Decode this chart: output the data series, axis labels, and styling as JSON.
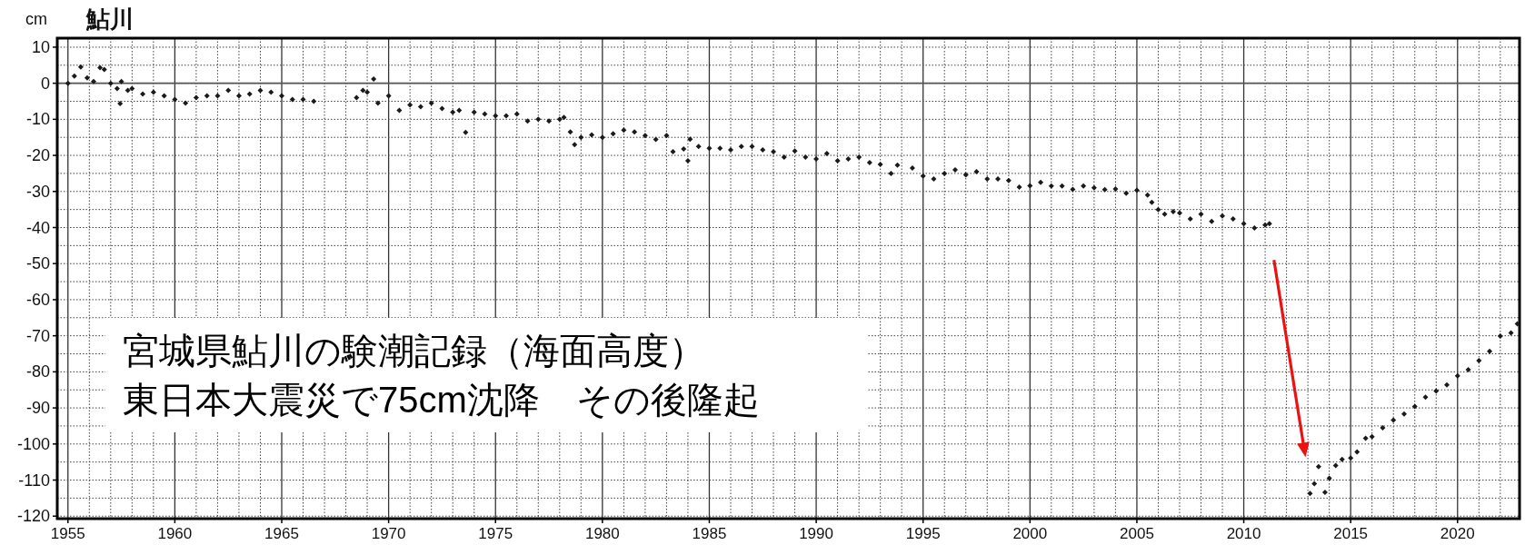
{
  "chart_data": {
    "type": "scatter",
    "title": "鮎川",
    "ylabel": "cm",
    "x": [
      1955.0,
      1955.3,
      1955.6,
      1955.9,
      1956.2,
      1956.5,
      1956.7,
      1957.0,
      1957.3,
      1957.44,
      1957.5,
      1957.8,
      1958.0,
      1958.5,
      1959.0,
      1959.5,
      1960.0,
      1960.5,
      1961.0,
      1961.5,
      1962.0,
      1962.5,
      1963.0,
      1963.5,
      1964.0,
      1964.5,
      1965.0,
      1965.5,
      1966.0,
      1966.5,
      1968.5,
      1968.8,
      1969.0,
      1969.3,
      1969.5,
      1970.0,
      1970.5,
      1971.0,
      1971.5,
      1972.0,
      1972.5,
      1973.0,
      1973.3,
      1973.6,
      1974.0,
      1974.5,
      1975.0,
      1975.5,
      1976.0,
      1976.5,
      1977.0,
      1977.5,
      1978.0,
      1978.2,
      1978.5,
      1978.7,
      1979.0,
      1979.5,
      1980.0,
      1980.5,
      1981.0,
      1981.5,
      1982.0,
      1982.5,
      1983.0,
      1983.3,
      1983.8,
      1984.0,
      1984.1,
      1984.5,
      1985.0,
      1985.5,
      1986.0,
      1986.5,
      1987.0,
      1987.5,
      1988.0,
      1988.5,
      1989.0,
      1989.5,
      1990.0,
      1990.5,
      1991.0,
      1991.5,
      1992.0,
      1992.5,
      1993.0,
      1993.5,
      1993.8,
      1994.5,
      1995.0,
      1995.5,
      1996.0,
      1996.5,
      1997.0,
      1997.5,
      1998.0,
      1998.5,
      1999.0,
      1999.5,
      2000.0,
      2000.5,
      2001.0,
      2001.5,
      2002.0,
      2002.5,
      2003.0,
      2003.5,
      2004.0,
      2004.5,
      2005.0,
      2005.5,
      2005.7,
      2006.0,
      2006.3,
      2006.7,
      2007.0,
      2007.5,
      2008.0,
      2008.5,
      2009.0,
      2009.5,
      2010.0,
      2010.5,
      2011.0,
      2011.2,
      2013.1,
      2013.3,
      2013.5,
      2013.8,
      2014.0,
      2014.3,
      2014.6,
      2015.0,
      2015.3,
      2015.7,
      2016.0,
      2016.5,
      2017.0,
      2017.5,
      2018.0,
      2018.5,
      2019.0,
      2019.5,
      2020.0,
      2020.5,
      2021.0,
      2021.5,
      2022.0,
      2022.5,
      2022.8
    ],
    "values": [
      0,
      2,
      4.5,
      1.5,
      0.5,
      4.3,
      3.8,
      0,
      -1.5,
      -5.6,
      0.5,
      -2,
      -1.5,
      -3,
      -2.5,
      -3.5,
      -4.5,
      -5.5,
      -4,
      -3.5,
      -3.5,
      -2,
      -3.5,
      -3,
      -2,
      -2.5,
      -3.5,
      -4.5,
      -4.5,
      -5,
      -4,
      -2,
      -2.5,
      1.2,
      -5.5,
      -3.5,
      -7.5,
      -6,
      -6.5,
      -5.5,
      -7,
      -8,
      -7.5,
      -13.6,
      -8,
      -8.5,
      -9,
      -9,
      -8.5,
      -10.5,
      -10,
      -10.5,
      -10,
      -9.5,
      -13.5,
      -17,
      -15,
      -14.3,
      -15,
      -14,
      -13,
      -13.5,
      -14.5,
      -15.6,
      -14.5,
      -19,
      -18.2,
      -21.5,
      -15.5,
      -17.5,
      -18,
      -18,
      -18.5,
      -17.5,
      -17.5,
      -18.5,
      -19,
      -20.5,
      -18.8,
      -20.5,
      -21,
      -19.5,
      -21.5,
      -21,
      -20.5,
      -22,
      -22.5,
      -25,
      -22.7,
      -23.5,
      -25.7,
      -26.5,
      -25,
      -24,
      -25.4,
      -24.5,
      -26.5,
      -26.5,
      -27,
      -28.8,
      -28.4,
      -27.5,
      -28.5,
      -28.5,
      -29.4,
      -28.5,
      -29,
      -29.5,
      -29.3,
      -30.5,
      -29.7,
      -31,
      -33,
      -35,
      -36.3,
      -35.6,
      -36,
      -37.6,
      -36.3,
      -38.3,
      -36.8,
      -37.6,
      -38.9,
      -40.1,
      -39.3,
      -38.9,
      -113.7,
      -111,
      -106.3,
      -113.4,
      -109.5,
      -106,
      -104.3,
      -103.9,
      -102.2,
      -98.4,
      -98,
      -95.5,
      -93.4,
      -91.7,
      -89.6,
      -87,
      -85.3,
      -83.6,
      -81.1,
      -79.4,
      -76.9,
      -74.3,
      -70.1,
      -69.2,
      -66.7
    ],
    "color": "#1a1a1a",
    "marker": "diamond",
    "xlim": [
      1954.5,
      2022.9
    ],
    "ylim": [
      -120.7,
      12.5
    ],
    "xticks": [
      1955,
      1960,
      1965,
      1970,
      1975,
      1980,
      1985,
      1990,
      1995,
      2000,
      2005,
      2010,
      2015,
      2020
    ],
    "yticks": [
      -120,
      -110,
      -100,
      -90,
      -80,
      -70,
      -60,
      -50,
      -40,
      -30,
      -20,
      -10,
      0,
      10
    ],
    "grid": true,
    "ref_lines": [
      {
        "axis": "y",
        "value": 0,
        "color": "#555555"
      }
    ],
    "annotations": [
      "宮城県鮎川の験潮記録（海面高度）",
      "東日本大震災で75cm沈降　その後隆起"
    ]
  }
}
